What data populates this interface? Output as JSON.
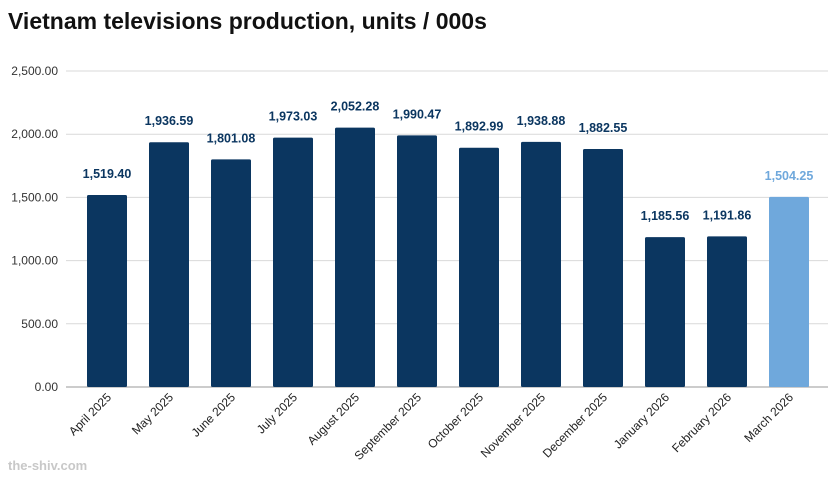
{
  "title": "Vietnam televisions production, units / 000s",
  "watermark": "the-shiv.com",
  "colors": {
    "bar": "#0b3660",
    "bar_highlight": "#6fa8dc",
    "label": "#0b3660",
    "label_highlight": "#6fa8dc",
    "grid": "#d9d9d9",
    "axis": "#999999"
  },
  "chart_data": {
    "type": "bar",
    "title": "Vietnam televisions production, units / 000s",
    "xlabel": "",
    "ylabel": "",
    "ylim": [
      0,
      2500
    ],
    "yticks": [
      0,
      500,
      1000,
      1500,
      2000,
      2500
    ],
    "ytick_labels": [
      "0.00",
      "500.00",
      "1,000.00",
      "1,500.00",
      "2,000.00",
      "2,500.00"
    ],
    "grid": true,
    "categories": [
      "April 2025",
      "May 2025",
      "June 2025",
      "July 2025",
      "August 2025",
      "September 2025",
      "October 2025",
      "November 2025",
      "December 2025",
      "January 2026",
      "February 2026",
      "March 2026"
    ],
    "values": [
      1519.4,
      1936.59,
      1801.08,
      1973.03,
      2052.28,
      1990.47,
      1892.99,
      1938.88,
      1882.55,
      1185.56,
      1191.86,
      1504.25
    ],
    "value_labels": [
      "1,519.40",
      "1,936.59",
      "1,801.08",
      "1,973.03",
      "2,052.28",
      "1,990.47",
      "1,892.99",
      "1,938.88",
      "1,882.55",
      "1,185.56",
      "1,191.86",
      "1,504.25"
    ],
    "highlight_index": 11
  }
}
